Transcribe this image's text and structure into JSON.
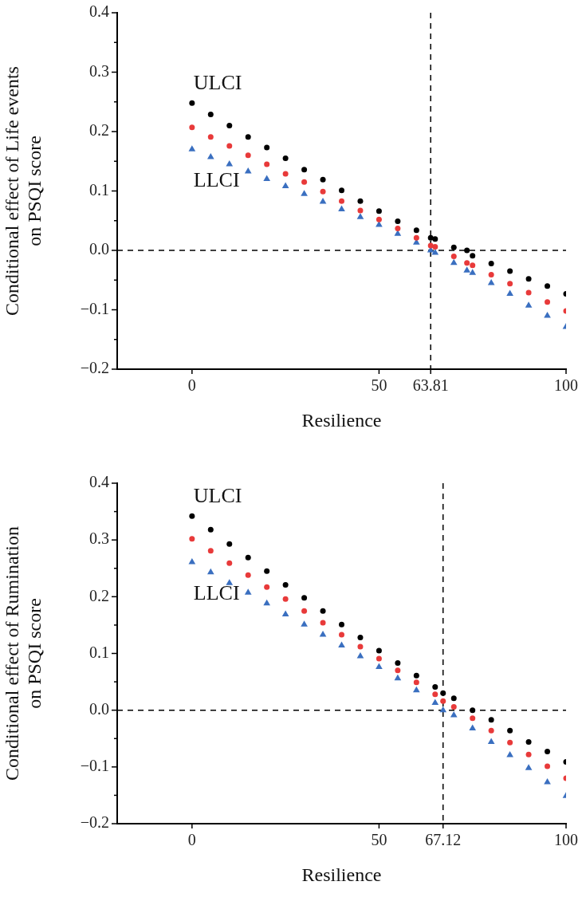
{
  "chart_data": [
    {
      "type": "scatter",
      "ylabel": "Conditional effect of Life events on PSQI score",
      "xlabel": "Resilience",
      "x": [
        0,
        5,
        10,
        15,
        20,
        25,
        30,
        35,
        40,
        45,
        50,
        55,
        60,
        63.81,
        65,
        70,
        73.5,
        75,
        80,
        85,
        90,
        95,
        100
      ],
      "series": [
        {
          "name": "ULCI",
          "color": "#000000",
          "marker": "circle",
          "values": [
            0.248,
            0.229,
            0.21,
            0.191,
            0.173,
            0.155,
            0.136,
            0.119,
            0.101,
            0.083,
            0.066,
            0.049,
            0.034,
            0.021,
            0.019,
            0.005,
            0.0,
            -0.009,
            -0.022,
            -0.035,
            -0.048,
            -0.06,
            -0.073
          ]
        },
        {
          "color": "#e83a3a",
          "marker": "circle",
          "values": [
            0.207,
            0.191,
            0.176,
            0.16,
            0.145,
            0.129,
            0.115,
            0.099,
            0.083,
            0.067,
            0.052,
            0.037,
            0.021,
            0.008,
            0.006,
            -0.01,
            -0.021,
            -0.025,
            -0.041,
            -0.056,
            -0.071,
            -0.087,
            -0.102
          ]
        },
        {
          "name": "LLCI",
          "color": "#3a6fc0",
          "marker": "triangle",
          "values": [
            0.17,
            0.157,
            0.145,
            0.133,
            0.12,
            0.108,
            0.095,
            0.082,
            0.069,
            0.056,
            0.043,
            0.028,
            0.013,
            0.0,
            -0.004,
            -0.021,
            -0.034,
            -0.038,
            -0.055,
            -0.073,
            -0.093,
            -0.11,
            -0.129
          ]
        }
      ],
      "xlim": [
        -20,
        100
      ],
      "xticks": [
        0,
        50,
        63.81,
        100
      ],
      "ylim": [
        -0.2,
        0.4
      ],
      "yticks": [
        {
          "value": -0.2,
          "label": "−0.2"
        },
        {
          "value": -0.15,
          "label": null
        },
        {
          "value": -0.1,
          "label": "−0.1"
        },
        {
          "value": -0.05,
          "label": null
        },
        {
          "value": 0,
          "label": "0.0"
        },
        {
          "value": 0.05,
          "label": null
        },
        {
          "value": 0.1,
          "label": "0.1"
        },
        {
          "value": 0.15,
          "label": null
        },
        {
          "value": 0.2,
          "label": "0.2"
        },
        {
          "value": 0.25,
          "label": null
        },
        {
          "value": 0.3,
          "label": "0.3"
        },
        {
          "value": 0.35,
          "label": null
        },
        {
          "value": 0.4,
          "label": "0.4"
        }
      ],
      "ref_lines": [
        {
          "axis": "y",
          "value": 0,
          "color": "#000000",
          "line_style": "dashed"
        },
        {
          "axis": "x",
          "value": 63.81,
          "color": "#000000",
          "line_style": "dashed"
        }
      ],
      "grid": false,
      "legend": false
    },
    {
      "type": "scatter",
      "ylabel": "Conditional effect of Rumination on PSQI score",
      "xlabel": "Resilience",
      "x": [
        0,
        5,
        10,
        15,
        20,
        25,
        30,
        35,
        40,
        45,
        50,
        55,
        60,
        65,
        67.12,
        70,
        75,
        80,
        85,
        90,
        95,
        100
      ],
      "series": [
        {
          "name": "ULCI",
          "color": "#000000",
          "marker": "circle",
          "values": [
            0.342,
            0.318,
            0.293,
            0.269,
            0.245,
            0.221,
            0.198,
            0.175,
            0.151,
            0.128,
            0.105,
            0.083,
            0.061,
            0.041,
            0.03,
            0.021,
            0.0,
            -0.017,
            -0.036,
            -0.056,
            -0.073,
            -0.091
          ]
        },
        {
          "color": "#e83a3a",
          "marker": "circle",
          "values": [
            0.302,
            0.281,
            0.259,
            0.238,
            0.217,
            0.196,
            0.175,
            0.154,
            0.133,
            0.112,
            0.091,
            0.07,
            0.049,
            0.028,
            0.016,
            0.006,
            -0.014,
            -0.036,
            -0.057,
            -0.078,
            -0.099,
            -0.12
          ]
        },
        {
          "name": "LLCI",
          "color": "#3a6fc0",
          "marker": "triangle",
          "values": [
            0.261,
            0.243,
            0.224,
            0.207,
            0.188,
            0.169,
            0.151,
            0.133,
            0.114,
            0.095,
            0.076,
            0.056,
            0.035,
            0.013,
            0.0,
            -0.009,
            -0.032,
            -0.056,
            -0.079,
            -0.102,
            -0.127,
            -0.151
          ]
        }
      ],
      "xlim": [
        -20,
        100
      ],
      "xticks": [
        0,
        50,
        67.12,
        100
      ],
      "ylim": [
        -0.2,
        0.4
      ],
      "yticks": [
        {
          "value": -0.2,
          "label": "−0.2"
        },
        {
          "value": -0.15,
          "label": null
        },
        {
          "value": -0.1,
          "label": "−0.1"
        },
        {
          "value": -0.05,
          "label": null
        },
        {
          "value": 0,
          "label": "0.0"
        },
        {
          "value": 0.05,
          "label": null
        },
        {
          "value": 0.1,
          "label": "0.1"
        },
        {
          "value": 0.15,
          "label": null
        },
        {
          "value": 0.2,
          "label": "0.2"
        },
        {
          "value": 0.25,
          "label": null
        },
        {
          "value": 0.3,
          "label": "0.3"
        },
        {
          "value": 0.35,
          "label": null
        },
        {
          "value": 0.4,
          "label": "0.4"
        }
      ],
      "ref_lines": [
        {
          "axis": "y",
          "value": 0,
          "color": "#000000",
          "line_style": "dashed"
        },
        {
          "axis": "x",
          "value": 67.12,
          "color": "#000000",
          "line_style": "dashed"
        }
      ],
      "grid": false,
      "legend": false
    }
  ]
}
